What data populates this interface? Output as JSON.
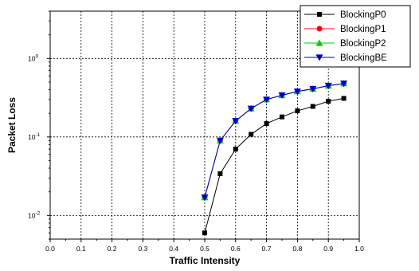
{
  "chart_data": {
    "type": "line",
    "title": "",
    "xlabel": "Traffic Intensity",
    "ylabel": "Packet Loss",
    "xlim": [
      0.0,
      1.0
    ],
    "ylim": [
      0.005,
      4
    ],
    "yscale": "log",
    "grid": true,
    "grid_style": "dotted",
    "legend_position": "top-right",
    "x_ticks": [
      "0.0",
      "0.1",
      "0.2",
      "0.3",
      "0.4",
      "0.5",
      "0.6",
      "0.7",
      "0.8",
      "0.9",
      "1.0"
    ],
    "y_ticks": [
      {
        "base": "10",
        "exp": "0",
        "value": 1
      },
      {
        "base": "10",
        "exp": "-1",
        "value": 0.1
      },
      {
        "base": "10",
        "exp": "-2",
        "value": 0.01
      }
    ],
    "x": [
      0.5,
      0.55,
      0.6,
      0.65,
      0.7,
      0.75,
      0.8,
      0.85,
      0.9,
      0.95
    ],
    "series": [
      {
        "name": "BlockingP0",
        "color": "#000000",
        "marker": "square",
        "values": [
          0.006,
          0.034,
          0.07,
          0.108,
          0.148,
          0.18,
          0.215,
          0.245,
          0.285,
          0.31
        ]
      },
      {
        "name": "BlockingP1",
        "color": "#ff0000",
        "marker": "circle",
        "values": [
          0.017,
          0.09,
          0.16,
          0.23,
          0.3,
          0.34,
          0.38,
          0.41,
          0.45,
          0.48
        ]
      },
      {
        "name": "BlockingP2",
        "color": "#00cc00",
        "marker": "triangle-up",
        "values": [
          0.017,
          0.09,
          0.16,
          0.23,
          0.3,
          0.34,
          0.38,
          0.41,
          0.45,
          0.48
        ]
      },
      {
        "name": "BlockingBE",
        "color": "#0000cc",
        "marker": "triangle-down",
        "values": [
          0.017,
          0.09,
          0.16,
          0.23,
          0.3,
          0.34,
          0.38,
          0.41,
          0.45,
          0.48
        ]
      }
    ]
  }
}
